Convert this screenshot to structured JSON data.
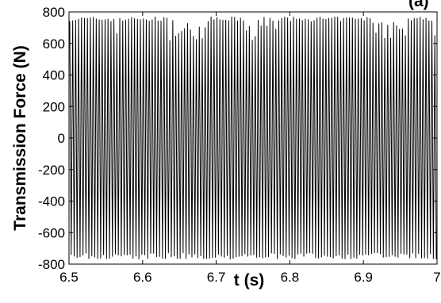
{
  "chart_data": {
    "type": "line",
    "title": "",
    "corner_label": "(a)",
    "xlabel": "t (s)",
    "ylabel": "Transmission Force (N)",
    "xlim": [
      6.5,
      7.0
    ],
    "ylim": [
      -800,
      800
    ],
    "x_ticks": [
      6.5,
      6.6,
      6.7,
      6.8,
      6.9,
      7.0
    ],
    "x_tick_labels": [
      "6.5",
      "6.6",
      "6.7",
      "6.8",
      "6.9",
      "7"
    ],
    "y_ticks": [
      800,
      600,
      400,
      200,
      0,
      -200,
      -400,
      -600,
      -800
    ],
    "y_tick_labels": [
      "800",
      "600",
      "400",
      "200",
      "0",
      "-200",
      "-400",
      "-600",
      "-800"
    ],
    "grid": false,
    "legend": "none",
    "series": [
      {
        "line_color": "#000000",
        "x_start": 6.5,
        "x_end": 7.0,
        "cycles_per_second": 250,
        "amplitude_typical": 740,
        "amplitude_max": 770,
        "peak_min": 620,
        "trough_min": -780,
        "shape": "dense oscillation between about -780 and 770 N, bursts of near-maximum peaks with irregular lower peaks"
      }
    ]
  }
}
